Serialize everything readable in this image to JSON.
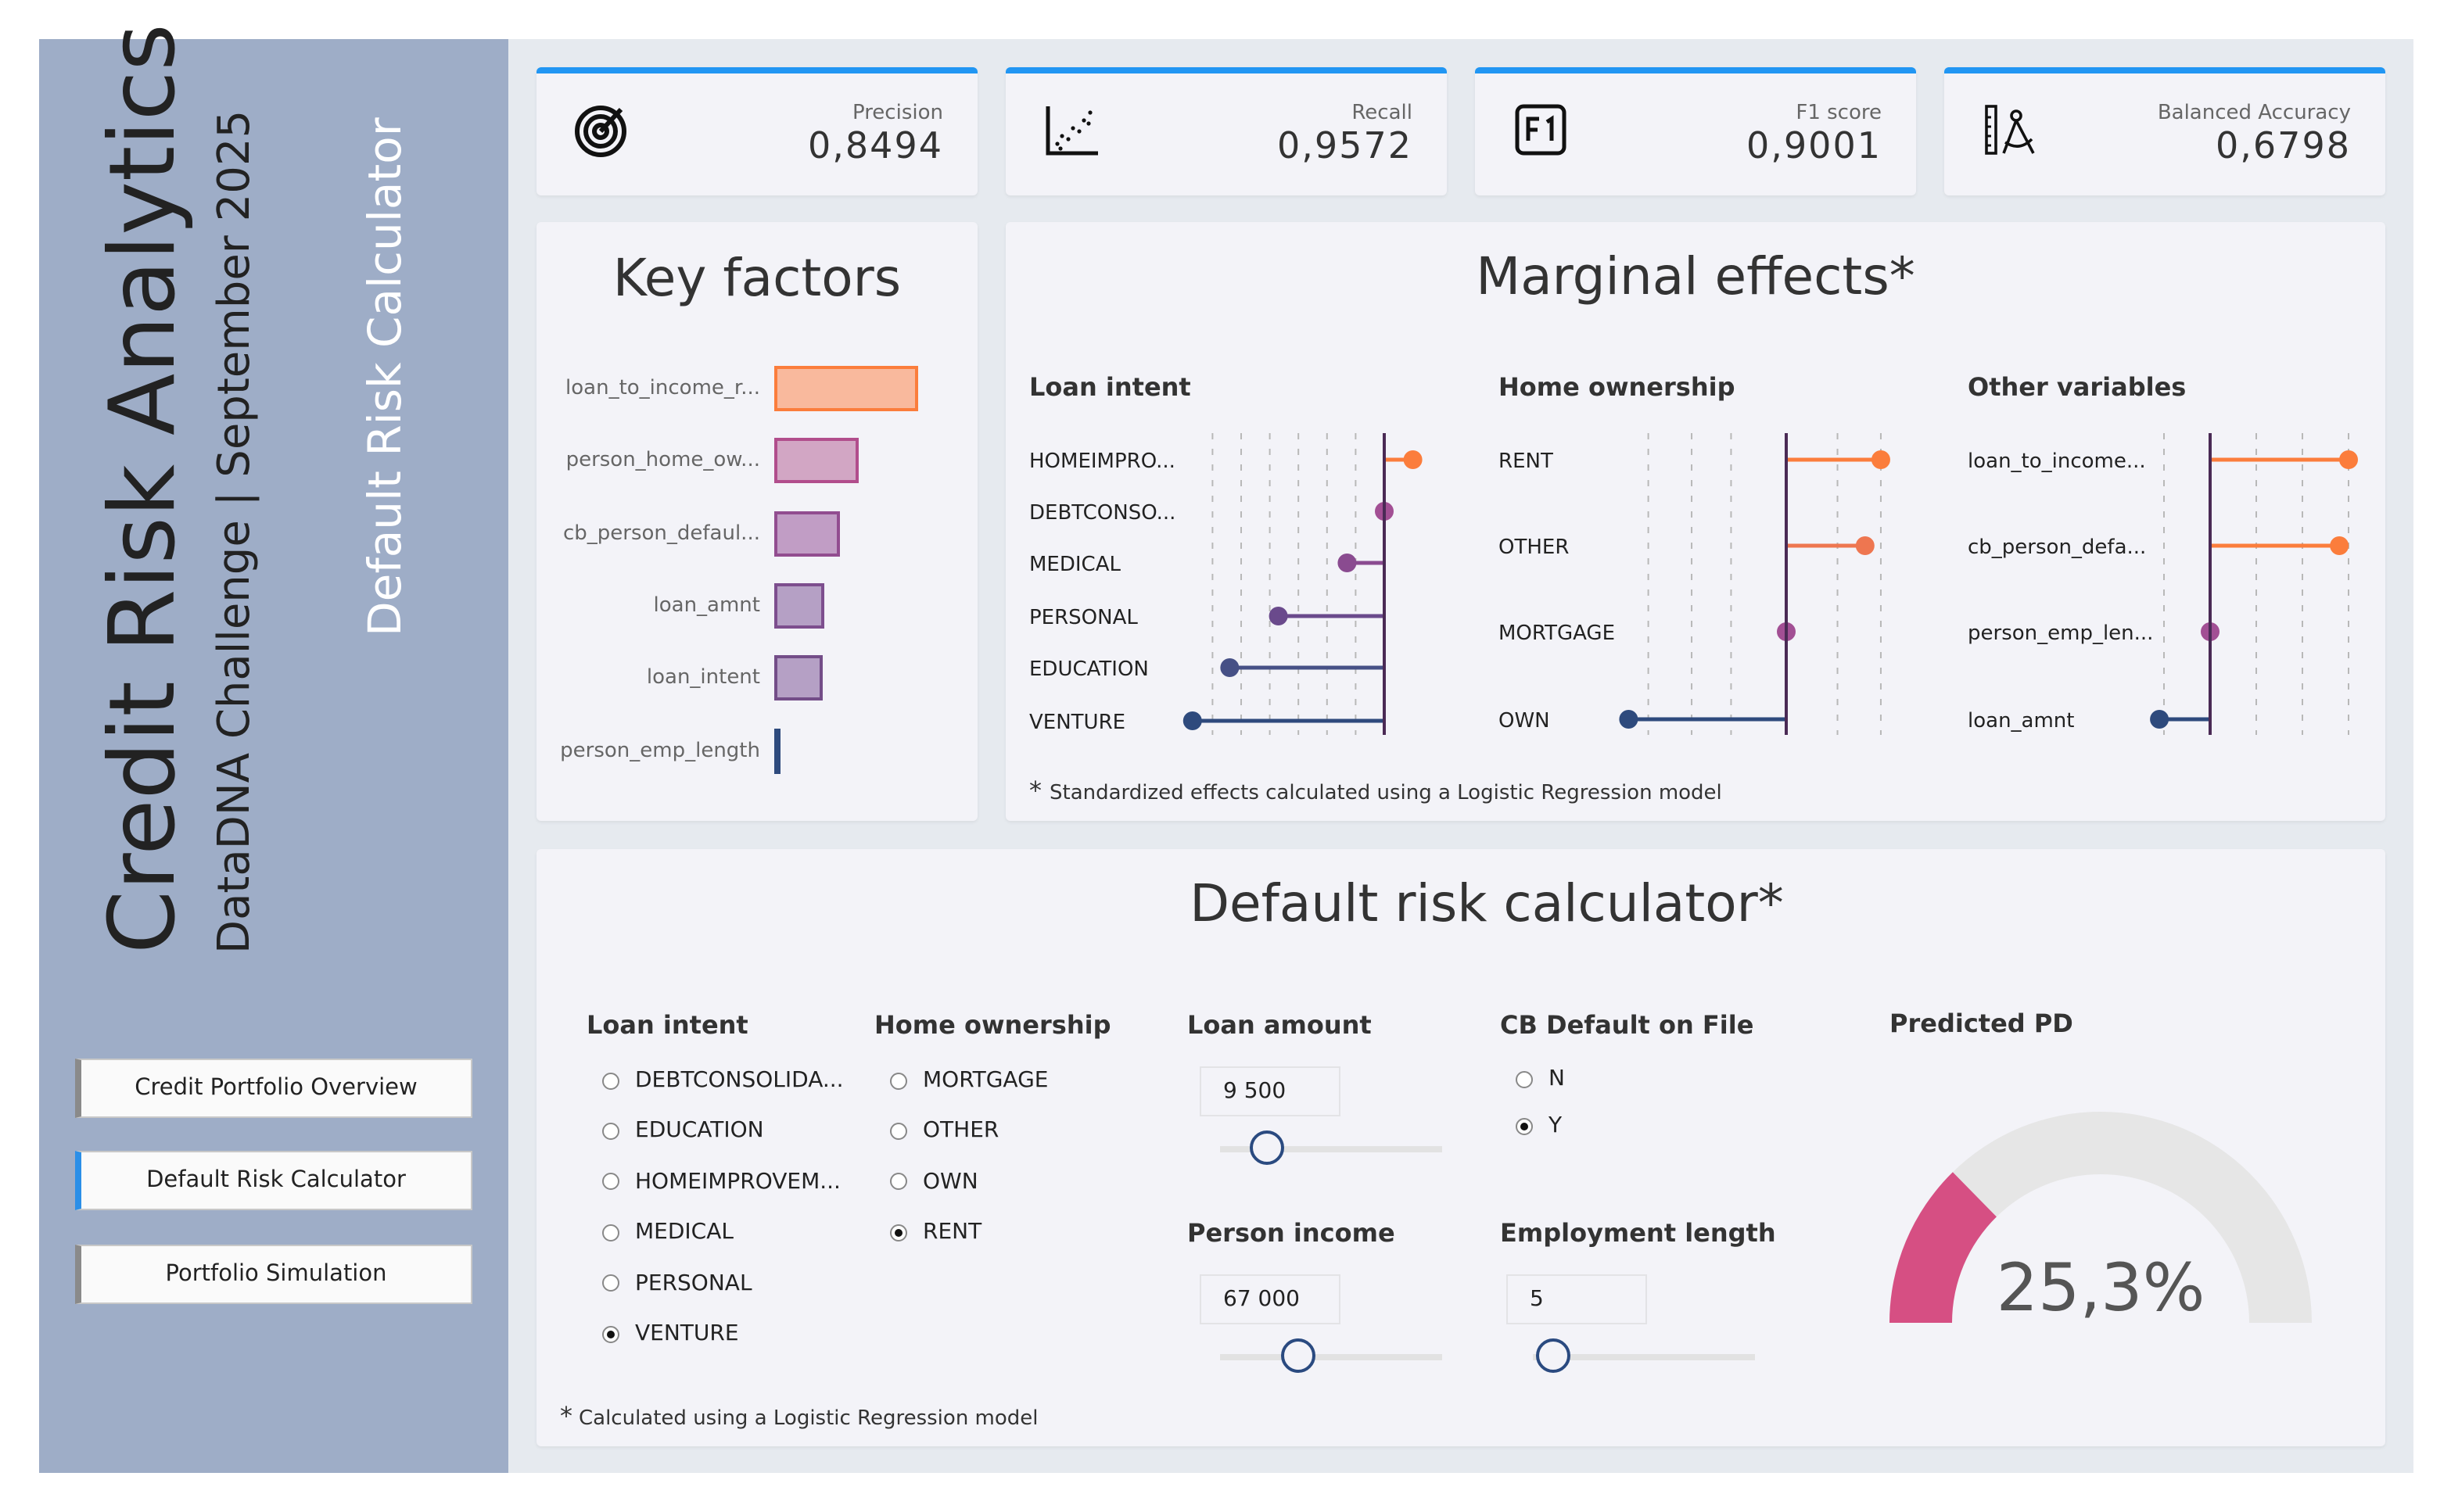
{
  "sidebar": {
    "title": "Credit Risk Analytics",
    "subtitle": "DataDNA Challenge | September 2025",
    "page_name": "Default Risk Calculator",
    "nav": [
      {
        "label": "Credit Portfolio Overview",
        "active": false
      },
      {
        "label": "Default Risk Calculator",
        "active": true
      },
      {
        "label": "Portfolio Simulation",
        "active": false
      }
    ]
  },
  "kpis": [
    {
      "label": "Precision",
      "value": "0,8494",
      "icon": "target-icon"
    },
    {
      "label": "Recall",
      "value": "0,9572",
      "icon": "scatter-icon"
    },
    {
      "label": "F1 score",
      "value": "0,9001",
      "icon": "f1-icon"
    },
    {
      "label": "Balanced Accuracy",
      "value": "0,6798",
      "icon": "ruler-compass-icon"
    }
  ],
  "key_factors": {
    "title": "Key factors",
    "items": [
      {
        "label": "loan_to_income_r...",
        "value": 92,
        "fill": "#f9b99d",
        "stroke": "#fb7d3c"
      },
      {
        "label": "person_home_ow...",
        "value": 54,
        "fill": "#d2a6c4",
        "stroke": "#b14d8c"
      },
      {
        "label": "cb_person_defaul...",
        "value": 42,
        "fill": "#c19dc5",
        "stroke": "#924d90"
      },
      {
        "label": "loan_amnt",
        "value": 32,
        "fill": "#b5a0c5",
        "stroke": "#7d4e8e"
      },
      {
        "label": "loan_intent",
        "value": 31,
        "fill": "#b5a0c5",
        "stroke": "#734d88"
      },
      {
        "label": "person_emp_length",
        "value": 3,
        "fill": "#8d99b5",
        "stroke": "#2e4a7d"
      }
    ]
  },
  "marginal_effects": {
    "title": "Marginal effects*",
    "footnote_mark": "*",
    "footnote": "Standardized effects calculated using a Logistic Regression model",
    "panels": [
      {
        "title": "Loan intent",
        "items": [
          {
            "label": "HOMEIMPRO...",
            "value": 1.0,
            "color": "#fb7d3c"
          },
          {
            "label": "DEBTCONSO...",
            "value": 0.0,
            "color": "#a24f94"
          },
          {
            "label": "MEDICAL",
            "value": -1.3,
            "color": "#8a4b90"
          },
          {
            "label": "PERSONAL",
            "value": -3.7,
            "color": "#6a4a8c"
          },
          {
            "label": "EDUCATION",
            "value": -5.4,
            "color": "#465086"
          },
          {
            "label": "VENTURE",
            "value": -6.7,
            "color": "#2e4a7d"
          }
        ]
      },
      {
        "title": "Home ownership",
        "items": [
          {
            "label": "RENT",
            "value": 2.4,
            "color": "#fb7d3c"
          },
          {
            "label": "OTHER",
            "value": 2.0,
            "color": "#ee7650"
          },
          {
            "label": "MORTGAGE",
            "value": 0.0,
            "color": "#a24f94"
          },
          {
            "label": "OWN",
            "value": -4.0,
            "color": "#2e4a7d"
          }
        ]
      },
      {
        "title": "Other variables",
        "items": [
          {
            "label": "loan_to_income...",
            "value": 3.0,
            "color": "#fb7d3c"
          },
          {
            "label": "cb_person_defa...",
            "value": 2.8,
            "color": "#fb7d3c"
          },
          {
            "label": "person_emp_len...",
            "value": 0.0,
            "color": "#a24f94"
          },
          {
            "label": "loan_amnt",
            "value": -1.1,
            "color": "#2e4a7d"
          }
        ]
      }
    ]
  },
  "calculator": {
    "title": "Default risk calculator*",
    "loan_intent": {
      "label": "Loan intent",
      "options": [
        "DEBTCONSOLIDA...",
        "EDUCATION",
        "HOMEIMPROVEM...",
        "MEDICAL",
        "PERSONAL",
        "VENTURE"
      ],
      "selected": 5
    },
    "home_ownership": {
      "label": "Home ownership",
      "options": [
        "MORTGAGE",
        "OTHER",
        "OWN",
        "RENT"
      ],
      "selected": 3
    },
    "loan_amount": {
      "label": "Loan amount",
      "value": "9 500",
      "slider": 0.21
    },
    "cb_default": {
      "label": "CB Default on File",
      "options": [
        "N",
        "Y"
      ],
      "selected": 1
    },
    "person_income": {
      "label": "Person income",
      "value": "67 000",
      "slider": 0.35
    },
    "employment_length": {
      "label": "Employment length",
      "value": "5",
      "slider": 0.09
    },
    "predicted_pd": {
      "label": "Predicted PD",
      "value": "25,3%",
      "fraction": 0.253,
      "color": "#d64f83"
    },
    "footnote_mark": "*",
    "footnote": "Calculated using a Logistic Regression model"
  }
}
